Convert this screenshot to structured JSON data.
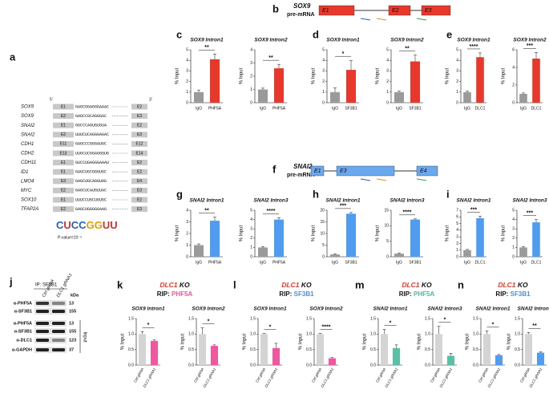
{
  "panel_labels": [
    "a",
    "b",
    "c",
    "d",
    "e",
    "f",
    "g",
    "h",
    "i",
    "j",
    "k",
    "l",
    "m",
    "n"
  ],
  "panel_a": {
    "start": "5'",
    "end": "3'",
    "rows": [
      {
        "gene": "SOX9",
        "left": "E1",
        "seq": "GAGCGGAGGGAAAC",
        "right": "E2"
      },
      {
        "gene": "SOX9",
        "left": "E2",
        "seq": "GAGCCGCAGGGAC",
        "right": "E3"
      },
      {
        "gene": "SNAI2",
        "left": "E1",
        "seq": "GGCCCAGUGUGUA",
        "right": "E2"
      },
      {
        "gene": "SNAI2",
        "left": "E2",
        "seq": "UUUCUCAGGGAGAC",
        "right": "E3"
      },
      {
        "gene": "CDH1",
        "left": "E11",
        "seq": "GAGCCCGGGAUGC",
        "right": "E12"
      },
      {
        "gene": "CDH2",
        "left": "E13",
        "seq": "UUGCUCGGAGGGUG",
        "right": "E14"
      },
      {
        "gene": "CDH11",
        "left": "E1",
        "seq": "GUCCUGAGGGAAAU",
        "right": "E2"
      },
      {
        "gene": "ID1",
        "left": "E1",
        "seq": "GAGCUGCGGGUGC",
        "right": "E2"
      },
      {
        "gene": "LMO4",
        "left": "E3",
        "seq": "GAGCUGCAGGUAG",
        "right": "E4"
      },
      {
        "gene": "MYC",
        "left": "E2",
        "seq": "GAGCUCAUGUUAC",
        "right": "E3"
      },
      {
        "gene": "SOX10",
        "left": "E1",
        "seq": "UUUCCUGCUGUGC",
        "right": "E2"
      },
      {
        "gene": "TFAP2A",
        "left": "E2",
        "seq": "GAGCUGGGGGAAG",
        "right": "E3"
      }
    ],
    "motif": "CUCCGGUU",
    "pvalue": "P-value=10⁻³"
  },
  "panel_b": {
    "gene": "SOX9",
    "kind": "pre-mRNA",
    "exons": [
      "E1",
      "E2",
      "E3"
    ]
  },
  "panel_f": {
    "gene": "SNAI2",
    "kind": "pre-mRNA",
    "exons": [
      "E1",
      "E3",
      "E4"
    ]
  },
  "panel_j": {
    "ip": "IP: SF3B1",
    "lanes": [
      "Ctrl gRNA",
      "DLC1 gRNA1"
    ],
    "kda": "kDa",
    "input": "Input",
    "rows": [
      {
        "antibody": "α-PHF5A",
        "size": "13"
      },
      {
        "antibody": "α-SF3B1",
        "size": "155"
      },
      {
        "antibody": "α-PHF5A",
        "size": "13"
      },
      {
        "antibody": "α-SF3B1",
        "size": "155"
      },
      {
        "antibody": "α-DLC1",
        "size": "123"
      },
      {
        "antibody": "α-GAPDH",
        "size": "37"
      }
    ]
  },
  "headings": [
    {
      "gene": "DLC1",
      "ko": " KO",
      "rip": "RIP: ",
      "protein": "PHF5A",
      "color": "#f0579e"
    },
    {
      "gene": "DLC1",
      "ko": " KO",
      "rip": "RIP: ",
      "protein": "SF3B1",
      "color": "#4a90e2"
    },
    {
      "gene": "DLC1",
      "ko": " KO",
      "rip": "RIP: ",
      "protein": "PHF5A",
      "color": "#4fb89c"
    },
    {
      "gene": "DLC1",
      "ko": " KO",
      "rip": "RIP: ",
      "protein": "SF3B1",
      "color": "#4a90e2"
    }
  ],
  "chart_data": [
    {
      "type": "bar",
      "title": "SOX9 Intron1",
      "ylabel": "% Input",
      "categories": [
        "IgG",
        "PHF5A"
      ],
      "values": [
        1.0,
        4.1
      ],
      "errors": [
        0.2,
        0.5
      ],
      "colors": [
        "#9a9a9a",
        "#e8382b"
      ],
      "ylim": [
        0,
        5
      ],
      "yticks": [
        0,
        1,
        2,
        3,
        4,
        5
      ],
      "significance": "**"
    },
    {
      "type": "bar",
      "title": "SOX9 Intron2",
      "ylabel": "% Input",
      "categories": [
        "IgG",
        "PHF5A"
      ],
      "values": [
        1.0,
        2.6
      ],
      "errors": [
        0.1,
        0.3
      ],
      "colors": [
        "#9a9a9a",
        "#e8382b"
      ],
      "ylim": [
        0,
        4
      ],
      "yticks": [
        0,
        1,
        2,
        3,
        4
      ],
      "significance": "**"
    },
    {
      "type": "bar",
      "title": "SOX9 Intron1",
      "ylabel": "% Input",
      "categories": [
        "IgG",
        "SF3B1"
      ],
      "values": [
        1.0,
        3.1
      ],
      "errors": [
        0.4,
        0.9
      ],
      "colors": [
        "#9a9a9a",
        "#e8382b"
      ],
      "ylim": [
        0,
        5
      ],
      "yticks": [
        0,
        1,
        2,
        3,
        4,
        5
      ],
      "significance": "*"
    },
    {
      "type": "bar",
      "title": "SOX9 Intron2",
      "ylabel": "% Input",
      "categories": [
        "IgG",
        "SF3B1"
      ],
      "values": [
        1.0,
        3.9
      ],
      "errors": [
        0.1,
        0.6
      ],
      "colors": [
        "#9a9a9a",
        "#e8382b"
      ],
      "ylim": [
        0,
        5
      ],
      "yticks": [
        0,
        1,
        2,
        3,
        4,
        5
      ],
      "significance": "**"
    },
    {
      "type": "bar",
      "title": "SOX9 Intron1",
      "ylabel": "% Input",
      "categories": [
        "IgG",
        "DLC1"
      ],
      "values": [
        1.0,
        4.3
      ],
      "errors": [
        0.1,
        0.4
      ],
      "colors": [
        "#9a9a9a",
        "#e8382b"
      ],
      "ylim": [
        0,
        5
      ],
      "yticks": [
        0,
        1,
        2,
        3,
        4,
        5
      ],
      "significance": "****"
    },
    {
      "type": "bar",
      "title": "SOX9 Intron2",
      "ylabel": "% Input",
      "categories": [
        "IgG",
        "DLC1"
      ],
      "values": [
        1.0,
        5.0
      ],
      "errors": [
        0.1,
        0.7
      ],
      "colors": [
        "#9a9a9a",
        "#e8382b"
      ],
      "ylim": [
        0,
        6
      ],
      "yticks": [
        0,
        2,
        4,
        6
      ],
      "significance": "***"
    },
    {
      "type": "bar",
      "title": "SNAI2 Intron1",
      "ylabel": "% Input",
      "categories": [
        "IgG",
        "PHF5A"
      ],
      "values": [
        1.0,
        3.1
      ],
      "errors": [
        0.1,
        0.3
      ],
      "colors": [
        "#9a9a9a",
        "#4f9cf0"
      ],
      "ylim": [
        0,
        4
      ],
      "yticks": [
        0,
        1,
        2,
        3,
        4
      ],
      "significance": "**"
    },
    {
      "type": "bar",
      "title": "SNAI2 Intron3",
      "ylabel": "% Input",
      "categories": [
        "IgG",
        "PHF5A"
      ],
      "values": [
        1.0,
        4.0
      ],
      "errors": [
        0.1,
        0.2
      ],
      "colors": [
        "#9a9a9a",
        "#4f9cf0"
      ],
      "ylim": [
        0,
        5
      ],
      "yticks": [
        0,
        1,
        2,
        3,
        4,
        5
      ],
      "significance": "****"
    },
    {
      "type": "bar",
      "title": "SNAI2 Intron1",
      "ylabel": "% Input",
      "categories": [
        "IgG",
        "SF3B1"
      ],
      "values": [
        1.0,
        18.5
      ],
      "errors": [
        0.3,
        0.5
      ],
      "colors": [
        "#9a9a9a",
        "#4f9cf0"
      ],
      "ylim": [
        0,
        20
      ],
      "yticks": [
        0,
        5,
        10,
        15,
        20
      ],
      "significance": "***"
    },
    {
      "type": "bar",
      "title": "SNAI2 Intron3",
      "ylabel": "% Input",
      "categories": [
        "IgG",
        "SF3B1"
      ],
      "values": [
        1.0,
        12.0
      ],
      "errors": [
        0.2,
        0.2
      ],
      "colors": [
        "#9a9a9a",
        "#4f9cf0"
      ],
      "ylim": [
        0,
        15
      ],
      "yticks": [
        0,
        5,
        10,
        15
      ],
      "significance": "****"
    },
    {
      "type": "bar",
      "title": "SNAI2 Intron1",
      "ylabel": "% Input",
      "categories": [
        "IgG",
        "DLC1"
      ],
      "values": [
        1.0,
        5.8
      ],
      "errors": [
        0.1,
        0.3
      ],
      "colors": [
        "#9a9a9a",
        "#4f9cf0"
      ],
      "ylim": [
        0,
        7
      ],
      "yticks": [
        0,
        1,
        2,
        3,
        4,
        5,
        6,
        7
      ],
      "significance": "***"
    },
    {
      "type": "bar",
      "title": "SNAI2 Intron3",
      "ylabel": "% Input",
      "categories": [
        "IgG",
        "DLC1"
      ],
      "values": [
        1.0,
        3.7
      ],
      "errors": [
        0.1,
        0.3
      ],
      "colors": [
        "#9a9a9a",
        "#4f9cf0"
      ],
      "ylim": [
        0,
        5
      ],
      "yticks": [
        0,
        1,
        2,
        3,
        4,
        5
      ],
      "significance": "***"
    },
    {
      "type": "bar",
      "title": "SOX9 Intron1",
      "ylabel": "% Input",
      "categories": [
        "Ctrl gRNA",
        "DLC1 gRNA1"
      ],
      "values": [
        1.0,
        0.78
      ],
      "errors": [
        0.08,
        0.03
      ],
      "colors": [
        "#d4d4d4",
        "#f0579e"
      ],
      "ylim": [
        0,
        1.5
      ],
      "yticks": [
        {
          "value": 0,
          "label": "0.0"
        },
        {
          "value": 0.5,
          "label": "0.5"
        },
        {
          "value": 1,
          "label": "1.0"
        },
        {
          "value": 1.5,
          "label": "1.5"
        }
      ],
      "significance": "*"
    },
    {
      "type": "bar",
      "title": "SOX9 Intron2",
      "ylabel": "% Input",
      "categories": [
        "Ctrl gRNA",
        "DLC1 gRNA1"
      ],
      "values": [
        1.0,
        0.62
      ],
      "errors": [
        0.2,
        0.03
      ],
      "colors": [
        "#d4d4d4",
        "#f0579e"
      ],
      "ylim": [
        0,
        1.5
      ],
      "yticks": [
        {
          "value": 0,
          "label": "0.0"
        },
        {
          "value": 0.5,
          "label": "0.5"
        },
        {
          "value": 1,
          "label": "1.0"
        },
        {
          "value": 1.5,
          "label": "1.5"
        }
      ],
      "significance": "*"
    },
    {
      "type": "bar",
      "title": "SOX9 Intron1",
      "ylabel": "% Input",
      "categories": [
        "Ctrl gRNA",
        "DLC1 gRNA1"
      ],
      "values": [
        1.0,
        0.55
      ],
      "errors": [
        0.02,
        0.15
      ],
      "colors": [
        "#d4d4d4",
        "#f0579e"
      ],
      "ylim": [
        0,
        1.5
      ],
      "yticks": [
        {
          "value": 0,
          "label": "0.0"
        },
        {
          "value": 0.5,
          "label": "0.5"
        },
        {
          "value": 1,
          "label": "1.0"
        },
        {
          "value": 1.5,
          "label": "1.5"
        }
      ],
      "significance": "*"
    },
    {
      "type": "bar",
      "title": "SOX9 Intron2",
      "ylabel": "% Input",
      "categories": [
        "Ctrl gRNA",
        "DLC1 gRNA1"
      ],
      "values": [
        1.0,
        0.22
      ],
      "errors": [
        0.02,
        0.02
      ],
      "colors": [
        "#d4d4d4",
        "#f0579e"
      ],
      "ylim": [
        0,
        1.5
      ],
      "yticks": [
        {
          "value": 0,
          "label": "0.0"
        },
        {
          "value": 0.5,
          "label": "0.5"
        },
        {
          "value": 1,
          "label": "1.0"
        },
        {
          "value": 1.5,
          "label": "1.5"
        }
      ],
      "significance": "****"
    },
    {
      "type": "bar",
      "title": "SNAI2 Intron1",
      "ylabel": "% Input",
      "categories": [
        "Ctrl gRNA",
        "DLC1 gRNA1"
      ],
      "values": [
        1.0,
        0.55
      ],
      "errors": [
        0.15,
        0.1
      ],
      "colors": [
        "#d4d4d4",
        "#5bbfa6"
      ],
      "ylim": [
        0,
        1.5
      ],
      "yticks": [
        {
          "value": 0,
          "label": "0.0"
        },
        {
          "value": 0.5,
          "label": "0.5"
        },
        {
          "value": 1,
          "label": "1.0"
        },
        {
          "value": 1.5,
          "label": "1.5"
        }
      ],
      "significance": "*"
    },
    {
      "type": "bar",
      "title": "SNAI2 Intron3",
      "ylabel": "% Input",
      "categories": [
        "Ctrl gRNA",
        "DLC1 gRNA1"
      ],
      "values": [
        1.0,
        0.3
      ],
      "errors": [
        0.25,
        0.08
      ],
      "colors": [
        "#d4d4d4",
        "#5bbfa6"
      ],
      "ylim": [
        0,
        1.5
      ],
      "yticks": [
        {
          "value": 0,
          "label": "0.0"
        },
        {
          "value": 0.5,
          "label": "0.5"
        },
        {
          "value": 1,
          "label": "1.0"
        },
        {
          "value": 1.5,
          "label": "1.5"
        }
      ],
      "significance": "*"
    },
    {
      "type": "bar",
      "title": "SNAI2 Intron1",
      "ylabel": "% Input",
      "categories": [
        "Ctrl gRNA",
        "DLC1 gRNA1"
      ],
      "values": [
        1.0,
        0.32
      ],
      "errors": [
        0.1,
        0.02
      ],
      "colors": [
        "#d4d4d4",
        "#4f9cf0"
      ],
      "ylim": [
        0,
        1.5
      ],
      "yticks": [
        {
          "value": 0,
          "label": "0.0"
        },
        {
          "value": 0.5,
          "label": "0.5"
        },
        {
          "value": 1,
          "label": "1.0"
        },
        {
          "value": 1.5,
          "label": "1.5"
        }
      ],
      "significance": "*"
    },
    {
      "type": "bar",
      "title": "SNAI2 Intron3",
      "ylabel": "% Input",
      "categories": [
        "Ctrl gRNA",
        "DLC1 gRNA1"
      ],
      "values": [
        1.0,
        0.4
      ],
      "errors": [
        0.05,
        0.03
      ],
      "colors": [
        "#d4d4d4",
        "#4f9cf0"
      ],
      "ylim": [
        0,
        1.5
      ],
      "yticks": [
        {
          "value": 0,
          "label": "0.0"
        },
        {
          "value": 0.5,
          "label": "0.5"
        },
        {
          "value": 1,
          "label": "1.0"
        },
        {
          "value": 1.5,
          "label": "1.5"
        }
      ],
      "significance": "**"
    }
  ]
}
